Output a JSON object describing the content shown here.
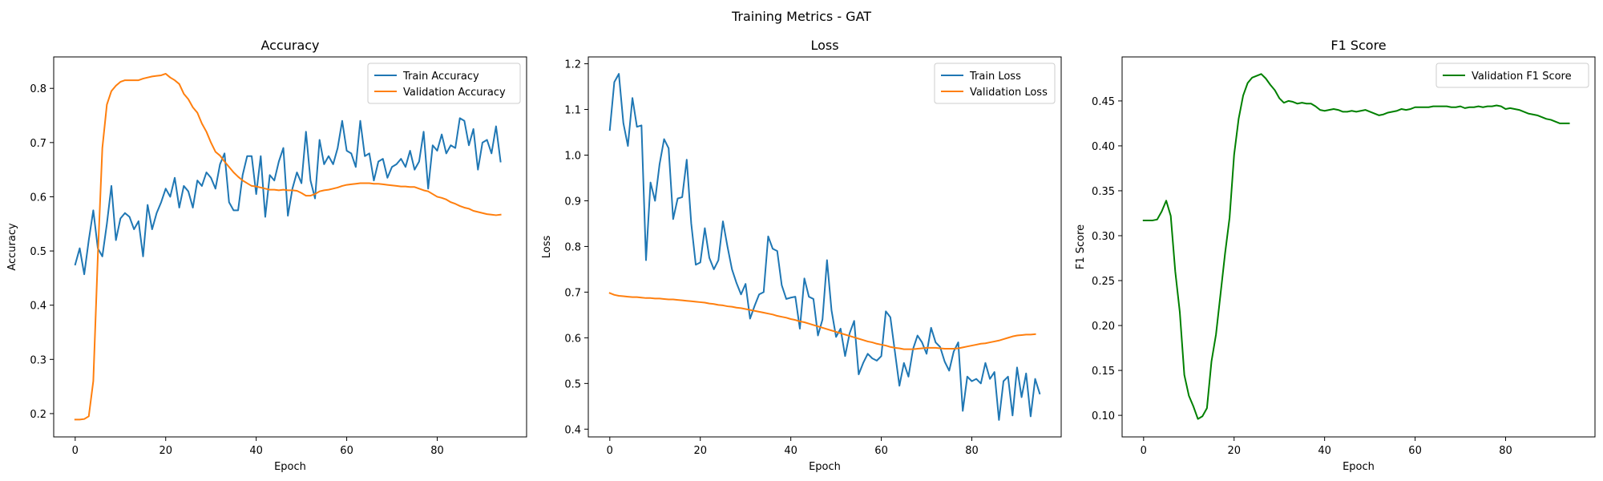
{
  "figure": {
    "title": "Training Metrics - GAT"
  },
  "chart_data": [
    {
      "type": "line",
      "title": "Accuracy",
      "xlabel": "Epoch",
      "ylabel": "Accuracy",
      "xlim": [
        -4.75,
        99.75
      ],
      "ylim": [
        0.157,
        0.858
      ],
      "xticks": [
        0,
        20,
        40,
        60,
        80
      ],
      "yticks": [
        0.2,
        0.3,
        0.4,
        0.5,
        0.6,
        0.7,
        0.8
      ],
      "tick_decimals": 1,
      "legend": "top-right",
      "grid": false,
      "series": [
        {
          "name": "Train Accuracy",
          "color": "#1f77b4",
          "values": [
            0.475,
            0.505,
            0.457,
            0.52,
            0.575,
            0.505,
            0.49,
            0.55,
            0.62,
            0.52,
            0.56,
            0.57,
            0.563,
            0.54,
            0.555,
            0.49,
            0.585,
            0.54,
            0.57,
            0.59,
            0.615,
            0.6,
            0.635,
            0.58,
            0.62,
            0.61,
            0.58,
            0.63,
            0.62,
            0.645,
            0.635,
            0.615,
            0.66,
            0.68,
            0.59,
            0.575,
            0.575,
            0.64,
            0.675,
            0.675,
            0.605,
            0.675,
            0.563,
            0.64,
            0.63,
            0.665,
            0.69,
            0.565,
            0.615,
            0.645,
            0.625,
            0.72,
            0.63,
            0.597,
            0.705,
            0.66,
            0.675,
            0.66,
            0.69,
            0.74,
            0.685,
            0.68,
            0.655,
            0.74,
            0.675,
            0.68,
            0.63,
            0.665,
            0.67,
            0.635,
            0.655,
            0.66,
            0.67,
            0.655,
            0.685,
            0.65,
            0.665,
            0.72,
            0.615,
            0.695,
            0.685,
            0.715,
            0.68,
            0.695,
            0.69,
            0.745,
            0.74,
            0.695,
            0.725,
            0.65,
            0.7,
            0.705,
            0.68,
            0.73,
            0.665
          ]
        },
        {
          "name": "Validation Accuracy",
          "color": "#ff7f0e",
          "values": [
            0.189,
            0.189,
            0.19,
            0.195,
            0.26,
            0.49,
            0.69,
            0.77,
            0.795,
            0.805,
            0.812,
            0.815,
            0.815,
            0.815,
            0.815,
            0.818,
            0.82,
            0.822,
            0.823,
            0.824,
            0.827,
            0.82,
            0.815,
            0.808,
            0.79,
            0.78,
            0.765,
            0.755,
            0.735,
            0.72,
            0.7,
            0.683,
            0.676,
            0.665,
            0.655,
            0.645,
            0.637,
            0.63,
            0.625,
            0.62,
            0.619,
            0.617,
            0.615,
            0.613,
            0.613,
            0.612,
            0.613,
            0.612,
            0.612,
            0.611,
            0.607,
            0.602,
            0.602,
            0.605,
            0.61,
            0.612,
            0.613,
            0.615,
            0.617,
            0.62,
            0.622,
            0.623,
            0.624,
            0.625,
            0.625,
            0.625,
            0.624,
            0.624,
            0.623,
            0.622,
            0.621,
            0.62,
            0.619,
            0.619,
            0.618,
            0.618,
            0.615,
            0.612,
            0.61,
            0.605,
            0.6,
            0.598,
            0.595,
            0.59,
            0.587,
            0.583,
            0.58,
            0.578,
            0.574,
            0.572,
            0.57,
            0.568,
            0.567,
            0.566,
            0.567
          ]
        }
      ]
    },
    {
      "type": "line",
      "title": "Loss",
      "xlabel": "Epoch",
      "ylabel": "Loss",
      "xlim": [
        -4.75,
        99.75
      ],
      "ylim": [
        0.383,
        1.215
      ],
      "xticks": [
        0,
        20,
        40,
        60,
        80
      ],
      "yticks": [
        0.4,
        0.5,
        0.6,
        0.7,
        0.8,
        0.9,
        1.0,
        1.1,
        1.2
      ],
      "tick_decimals": 1,
      "legend": "top-right",
      "grid": false,
      "series": [
        {
          "name": "Train Loss",
          "color": "#1f77b4",
          "values": [
            1.055,
            1.16,
            1.178,
            1.07,
            1.02,
            1.125,
            1.062,
            1.065,
            0.77,
            0.94,
            0.9,
            0.98,
            1.035,
            1.015,
            0.86,
            0.905,
            0.908,
            0.99,
            0.85,
            0.76,
            0.765,
            0.84,
            0.775,
            0.75,
            0.77,
            0.855,
            0.8,
            0.75,
            0.72,
            0.695,
            0.718,
            0.642,
            0.67,
            0.695,
            0.7,
            0.822,
            0.795,
            0.79,
            0.715,
            0.685,
            0.688,
            0.69,
            0.62,
            0.73,
            0.69,
            0.685,
            0.605,
            0.64,
            0.77,
            0.66,
            0.602,
            0.62,
            0.56,
            0.61,
            0.637,
            0.52,
            0.545,
            0.565,
            0.555,
            0.55,
            0.56,
            0.658,
            0.645,
            0.57,
            0.495,
            0.545,
            0.515,
            0.575,
            0.605,
            0.59,
            0.565,
            0.622,
            0.59,
            0.58,
            0.548,
            0.528,
            0.57,
            0.59,
            0.44,
            0.515,
            0.505,
            0.51,
            0.5,
            0.545,
            0.51,
            0.525,
            0.42,
            0.505,
            0.515,
            0.43,
            0.535,
            0.47,
            0.522,
            0.428,
            0.51,
            0.478
          ]
        },
        {
          "name": "Validation Loss",
          "color": "#ff7f0e",
          "values": [
            0.698,
            0.694,
            0.692,
            0.691,
            0.69,
            0.689,
            0.689,
            0.688,
            0.687,
            0.687,
            0.686,
            0.686,
            0.685,
            0.684,
            0.684,
            0.683,
            0.682,
            0.681,
            0.68,
            0.679,
            0.678,
            0.677,
            0.675,
            0.674,
            0.672,
            0.671,
            0.669,
            0.668,
            0.666,
            0.665,
            0.663,
            0.661,
            0.659,
            0.657,
            0.655,
            0.653,
            0.651,
            0.648,
            0.646,
            0.644,
            0.641,
            0.639,
            0.636,
            0.634,
            0.631,
            0.628,
            0.625,
            0.622,
            0.619,
            0.616,
            0.613,
            0.61,
            0.607,
            0.604,
            0.601,
            0.598,
            0.595,
            0.592,
            0.59,
            0.587,
            0.585,
            0.583,
            0.58,
            0.578,
            0.577,
            0.575,
            0.575,
            0.575,
            0.576,
            0.577,
            0.578,
            0.578,
            0.578,
            0.577,
            0.576,
            0.576,
            0.576,
            0.577,
            0.579,
            0.581,
            0.583,
            0.585,
            0.587,
            0.588,
            0.59,
            0.592,
            0.594,
            0.597,
            0.6,
            0.603,
            0.605,
            0.606,
            0.607,
            0.607,
            0.608
          ]
        }
      ]
    },
    {
      "type": "line",
      "title": "F1 Score",
      "xlabel": "Epoch",
      "ylabel": "F1 Score",
      "xlim": [
        -4.75,
        99.75
      ],
      "ylim": [
        0.076,
        0.499
      ],
      "xticks": [
        0,
        20,
        40,
        60,
        80
      ],
      "yticks": [
        0.1,
        0.15,
        0.2,
        0.25,
        0.3,
        0.35,
        0.4,
        0.45
      ],
      "tick_decimals": 2,
      "legend": "top-right",
      "grid": false,
      "series": [
        {
          "name": "Validation F1 Score",
          "color": "#008000",
          "values": [
            0.317,
            0.317,
            0.317,
            0.318,
            0.327,
            0.339,
            0.322,
            0.26,
            0.215,
            0.145,
            0.122,
            0.11,
            0.096,
            0.099,
            0.108,
            0.16,
            0.19,
            0.235,
            0.28,
            0.32,
            0.39,
            0.43,
            0.456,
            0.47,
            0.476,
            0.478,
            0.48,
            0.475,
            0.468,
            0.462,
            0.453,
            0.448,
            0.45,
            0.449,
            0.447,
            0.448,
            0.447,
            0.447,
            0.444,
            0.44,
            0.439,
            0.44,
            0.441,
            0.44,
            0.438,
            0.438,
            0.439,
            0.438,
            0.439,
            0.44,
            0.438,
            0.436,
            0.434,
            0.435,
            0.437,
            0.438,
            0.439,
            0.441,
            0.44,
            0.441,
            0.443,
            0.443,
            0.443,
            0.443,
            0.444,
            0.444,
            0.444,
            0.444,
            0.443,
            0.443,
            0.444,
            0.442,
            0.443,
            0.443,
            0.444,
            0.443,
            0.444,
            0.444,
            0.445,
            0.444,
            0.441,
            0.442,
            0.441,
            0.44,
            0.438,
            0.436,
            0.435,
            0.434,
            0.432,
            0.43,
            0.429,
            0.427,
            0.425,
            0.425,
            0.425
          ]
        }
      ]
    }
  ]
}
